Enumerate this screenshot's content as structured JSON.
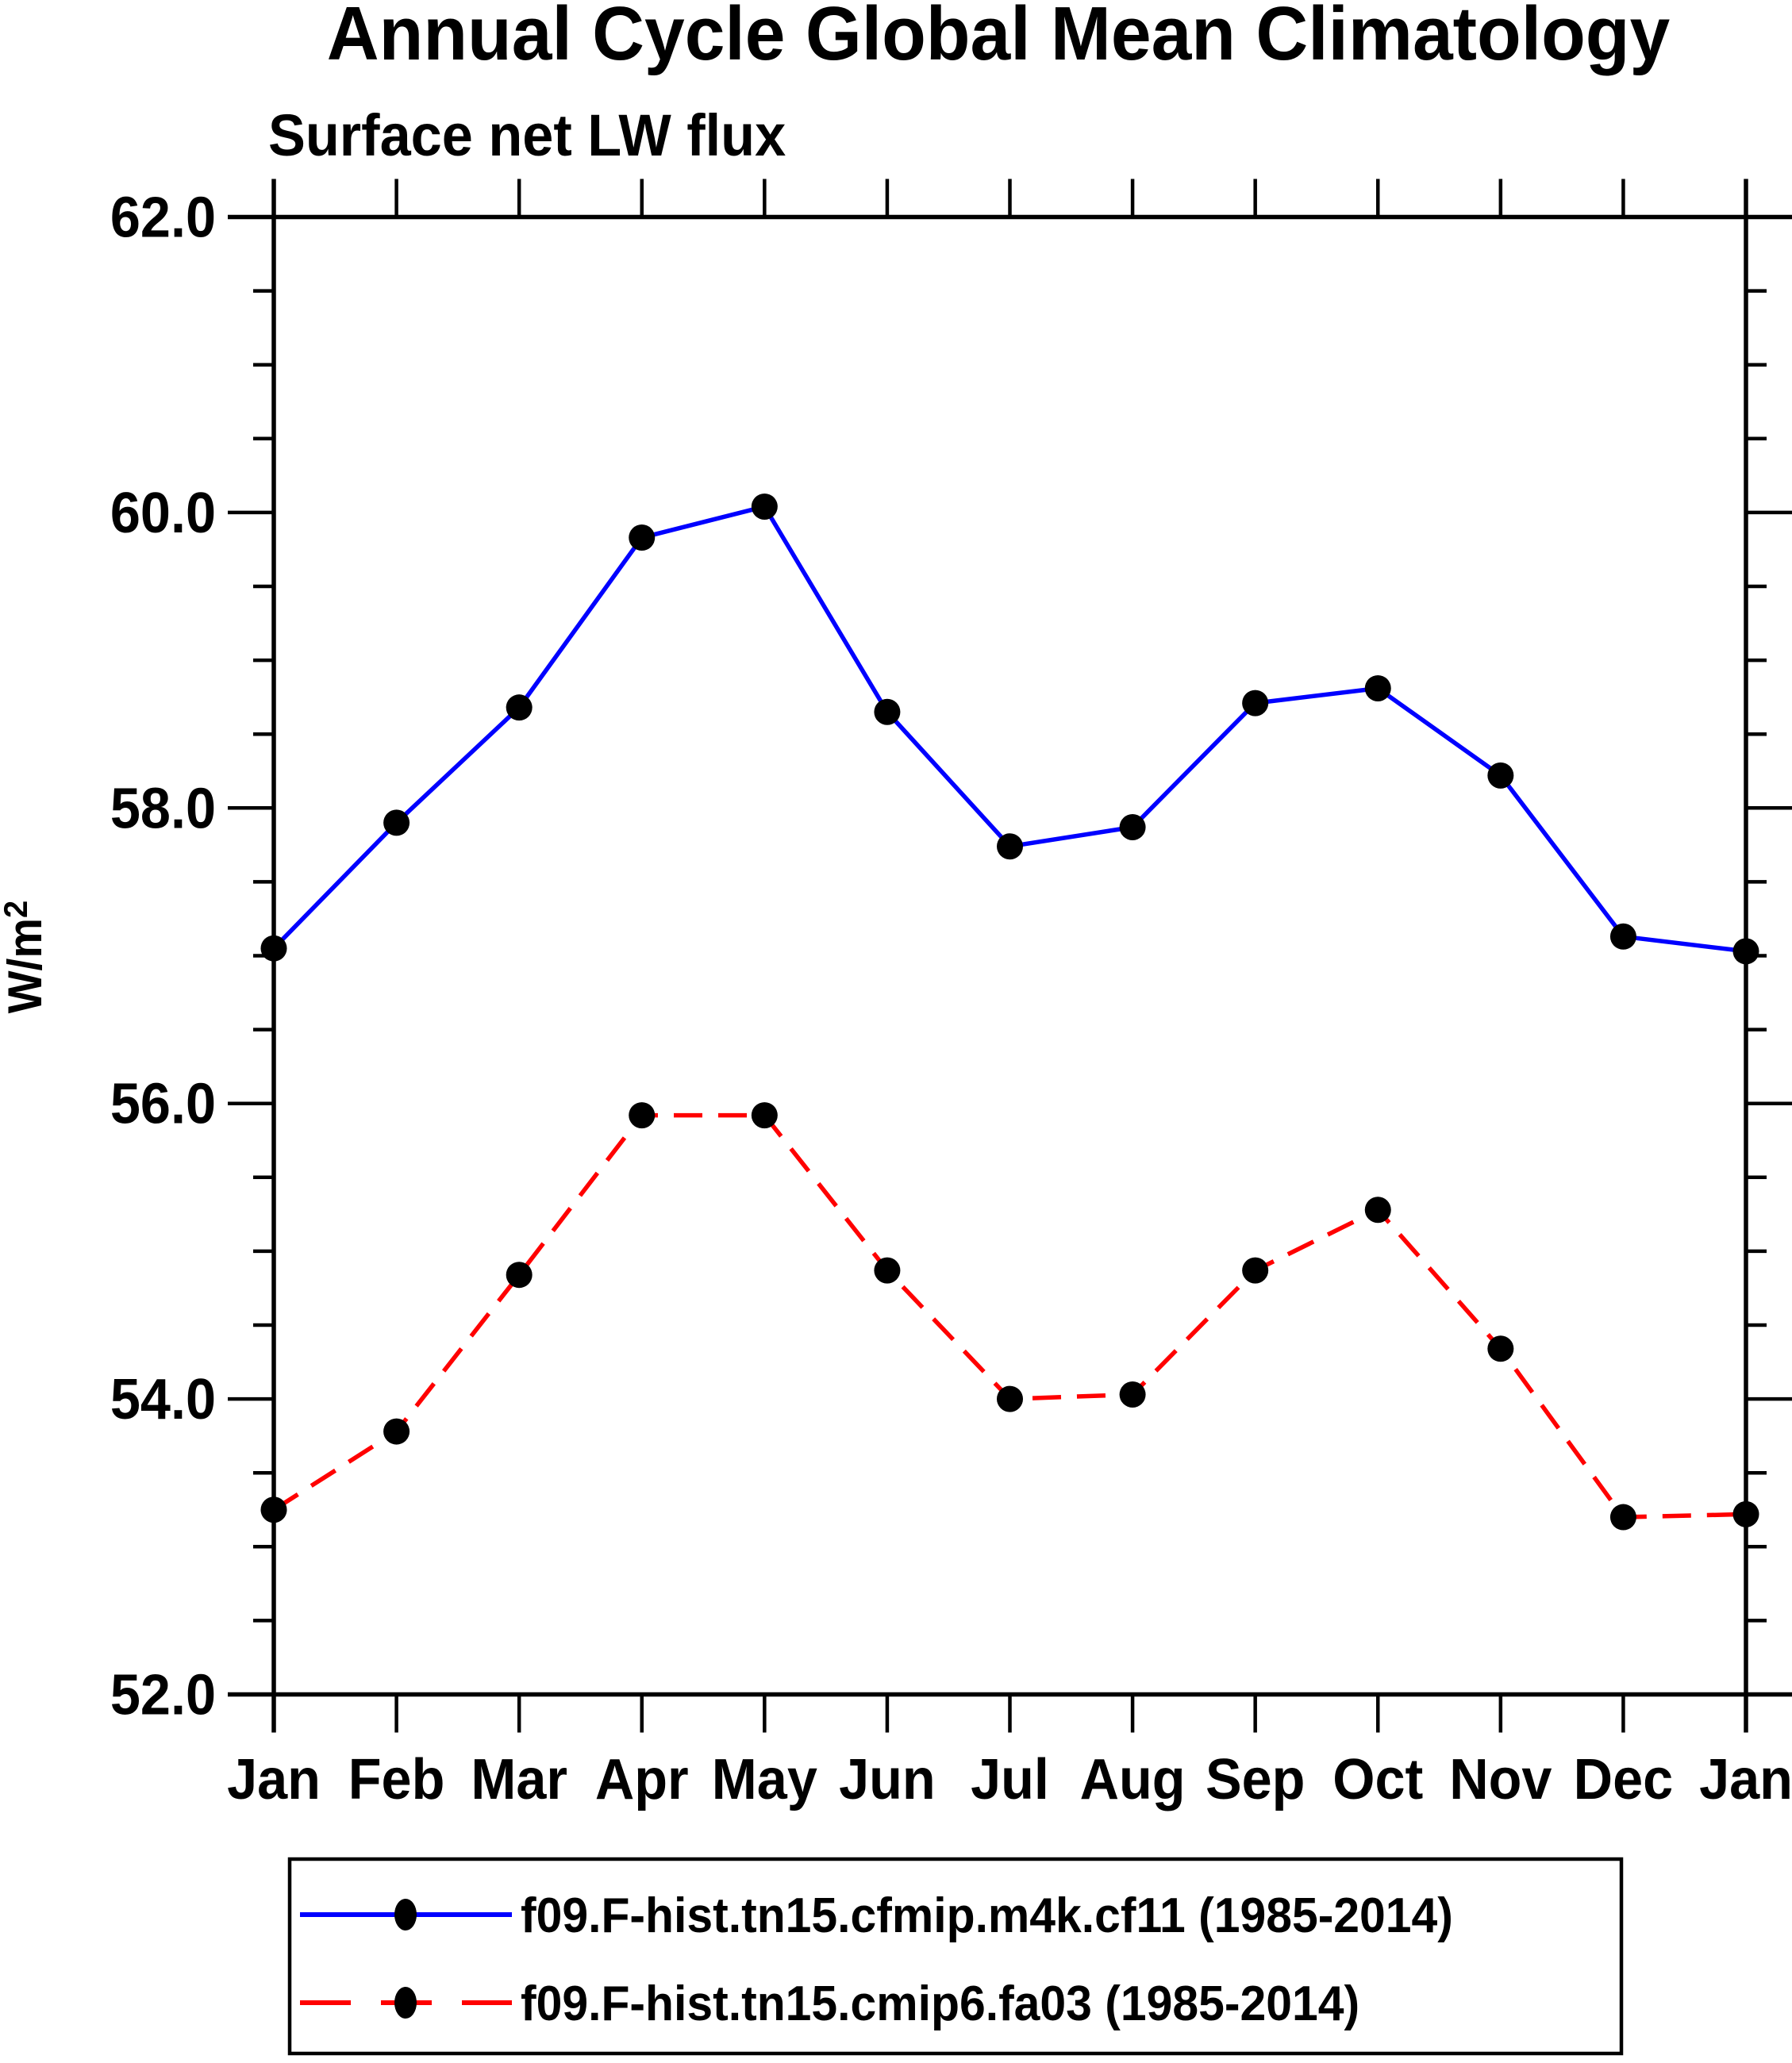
{
  "title": "Annual Cycle Global Mean Climatology",
  "subtitle": "Surface net LW flux",
  "ylabel": {
    "main": "W/m",
    "sup": "2"
  },
  "colors": {
    "background": "#ffffff",
    "axis": "#000000",
    "marker": "#000000",
    "series1": "#0000ff",
    "series2": "#ff0000"
  },
  "legend": {
    "entries": [
      {
        "label": "f09.F-hist.tn15.cfmip.m4k.cf11 (1985-2014)",
        "line_style": "solid",
        "line_color": "#0000ff",
        "marker_color": "#000000"
      },
      {
        "label": "f09.F-hist.tn15.cmip6.fa03 (1985-2014)",
        "line_style": "dashed",
        "line_color": "#ff0000",
        "marker_color": "#000000"
      }
    ]
  },
  "chart_data": {
    "type": "line",
    "title": "Annual Cycle Global Mean Climatology",
    "subtitle": "Surface net LW flux",
    "xlabel": "",
    "ylabel": "W/m^2",
    "categories": [
      "Jan",
      "Feb",
      "Mar",
      "Apr",
      "May",
      "Jun",
      "Jul",
      "Aug",
      "Sep",
      "Oct",
      "Nov",
      "Dec",
      "Jan"
    ],
    "ylim": [
      52.0,
      62.0
    ],
    "ytick_major_labels": [
      "52.0",
      "54.0",
      "56.0",
      "58.0",
      "60.0",
      "62.0"
    ],
    "ytick_major_values": [
      52.0,
      54.0,
      56.0,
      58.0,
      60.0,
      62.0
    ],
    "ytick_minor_step": 0.5,
    "grid": false,
    "legend_position": "bottom",
    "series": [
      {
        "name": "f09.F-hist.tn15.cfmip.m4k.cf11 (1985-2014)",
        "color": "#0000ff",
        "style": "solid",
        "marker": "filled-circle",
        "values": [
          57.05,
          57.9,
          58.68,
          59.83,
          60.04,
          58.65,
          57.74,
          57.87,
          58.71,
          58.81,
          58.22,
          57.13,
          57.03
        ]
      },
      {
        "name": "f09.F-hist.tn15.cmip6.fa03 (1985-2014)",
        "color": "#ff0000",
        "style": "dashed",
        "marker": "filled-circle",
        "values": [
          53.25,
          53.78,
          54.84,
          55.92,
          55.92,
          54.87,
          54.0,
          54.03,
          54.87,
          55.28,
          54.34,
          53.2,
          53.22
        ]
      }
    ]
  }
}
